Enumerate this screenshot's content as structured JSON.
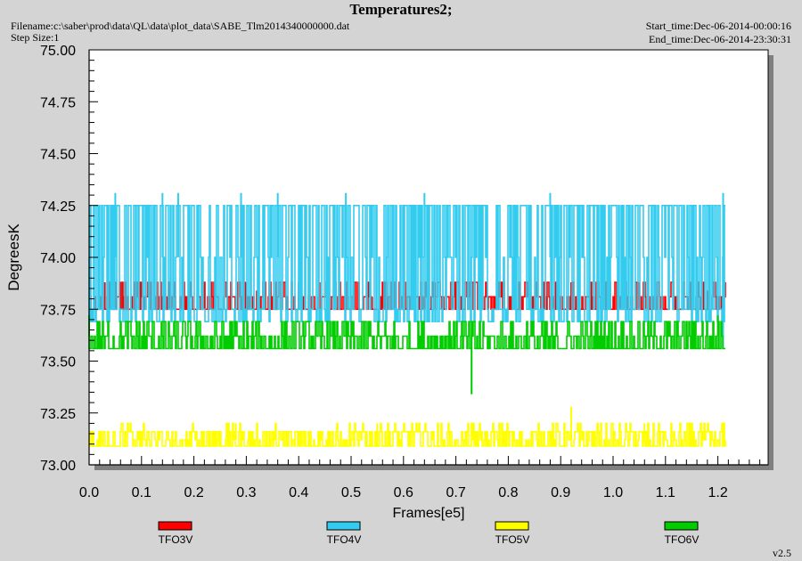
{
  "header": {
    "title": "Temperatures2;",
    "filename": "Filename:c:\\saber\\prod\\data\\QL\\data\\plot_data\\SABE_Tlm2014340000000.dat",
    "step_size": "Step Size:1",
    "start_time": "Start_time:Dec-06-2014-00:00:16",
    "end_time": "End_time:Dec-06-2014-23:30:31",
    "version": "v2.5"
  },
  "chart_data": {
    "type": "line",
    "xlabel": "Frames[e5]",
    "ylabel": "DegreesK",
    "xlim": [
      0.0,
      1.3
    ],
    "ylim": [
      73.0,
      75.0
    ],
    "x_ticks": [
      "0.0",
      "0.1",
      "0.2",
      "0.3",
      "0.4",
      "0.5",
      "0.6",
      "0.7",
      "0.8",
      "0.9",
      "1.0",
      "1.1",
      "1.2"
    ],
    "y_ticks": [
      "73.00",
      "73.25",
      "73.50",
      "73.75",
      "74.00",
      "74.25",
      "74.50",
      "74.75",
      "75.00"
    ],
    "grid": false,
    "legend_position": "bottom",
    "series": [
      {
        "name": "TFO3V",
        "color": "#ff0000",
        "base": 73.75,
        "levels": [
          73.75,
          73.81,
          73.88
        ],
        "spikes": [
          [
            0.03,
            73.88
          ],
          [
            0.06,
            73.88
          ],
          [
            0.15,
            73.81
          ],
          [
            0.19,
            73.88
          ],
          [
            0.24,
            73.81
          ],
          [
            0.3,
            73.88
          ],
          [
            0.32,
            73.84
          ],
          [
            0.4,
            73.88
          ],
          [
            0.44,
            73.88
          ],
          [
            0.54,
            73.81
          ],
          [
            0.64,
            73.81
          ],
          [
            0.66,
            73.88
          ],
          [
            0.7,
            73.84
          ],
          [
            0.78,
            73.81
          ],
          [
            0.92,
            73.88
          ],
          [
            0.97,
            73.81
          ],
          [
            1.05,
            73.88
          ],
          [
            1.18,
            73.84
          ]
        ]
      },
      {
        "name": "TFO4V",
        "color": "#33ccee",
        "base": 74.0,
        "levels": [
          73.69,
          73.75,
          74.25,
          74.31
        ],
        "spikes": [
          [
            0.05,
            74.31
          ],
          [
            0.14,
            74.31
          ],
          [
            0.17,
            74.31
          ],
          [
            0.29,
            74.31
          ],
          [
            0.36,
            74.31
          ],
          [
            0.49,
            74.31
          ],
          [
            0.64,
            74.31
          ],
          [
            0.88,
            74.31
          ],
          [
            1.21,
            74.31
          ],
          [
            1.21,
            73.56
          ]
        ]
      },
      {
        "name": "TFO5V",
        "color": "#ffff00",
        "base": 73.12,
        "levels": [
          73.09,
          73.12,
          73.16,
          73.2
        ],
        "spikes": [
          [
            0.92,
            73.28
          ],
          [
            1.06,
            73.2
          ],
          [
            0.28,
            73.2
          ],
          [
            0.55,
            73.2
          ]
        ]
      },
      {
        "name": "TFO6V",
        "color": "#00cc00",
        "base": 73.62,
        "levels": [
          73.56,
          73.59,
          73.62,
          73.66,
          73.69
        ],
        "spikes": [
          [
            0.73,
            73.34
          ],
          [
            0.0,
            73.72
          ],
          [
            1.2,
            73.72
          ]
        ]
      }
    ]
  }
}
